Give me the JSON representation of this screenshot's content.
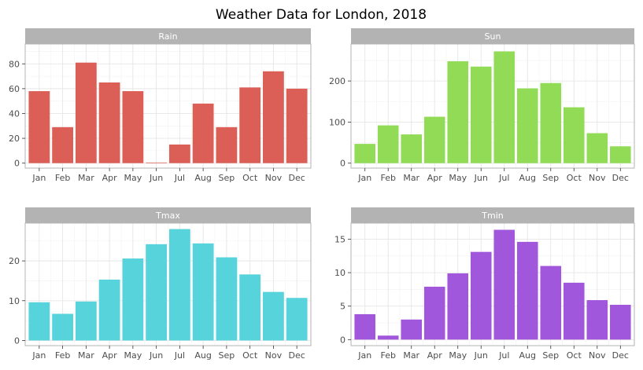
{
  "title": "Weather Data for London, 2018",
  "chart_data": {
    "type": "bar",
    "layout": "facet-grid-2x2",
    "grid": true,
    "categories": [
      "Jan",
      "Feb",
      "Mar",
      "Apr",
      "May",
      "Jun",
      "Jul",
      "Aug",
      "Sep",
      "Oct",
      "Nov",
      "Dec"
    ],
    "panels": [
      {
        "name": "Rain",
        "color": "#db5f57",
        "values": [
          58,
          29,
          81,
          65,
          58,
          0.5,
          15,
          48,
          29,
          61,
          74,
          60
        ],
        "ylim": [
          -4,
          96
        ],
        "yticks": [
          0,
          20,
          40,
          60,
          80
        ]
      },
      {
        "name": "Sun",
        "color": "#91db57",
        "values": [
          47,
          92,
          70,
          113,
          248,
          235,
          272,
          182,
          195,
          136,
          73,
          41
        ],
        "ylim": [
          -12,
          290
        ],
        "yticks": [
          0,
          100,
          200
        ]
      },
      {
        "name": "Tmax",
        "color": "#57d3db",
        "values": [
          9.6,
          6.7,
          9.8,
          15.3,
          20.6,
          24.2,
          28.0,
          24.4,
          20.9,
          16.6,
          12.2,
          10.7
        ],
        "ylim": [
          -1.3,
          29.5
        ],
        "yticks": [
          0,
          10,
          20
        ]
      },
      {
        "name": "Tmin",
        "color": "#a157db",
        "values": [
          3.8,
          0.6,
          3.0,
          7.9,
          9.9,
          13.1,
          16.4,
          14.6,
          11.0,
          8.5,
          5.9,
          5.2
        ],
        "ylim": [
          -0.9,
          17.4
        ],
        "yticks": [
          0,
          5,
          10,
          15
        ]
      }
    ]
  }
}
